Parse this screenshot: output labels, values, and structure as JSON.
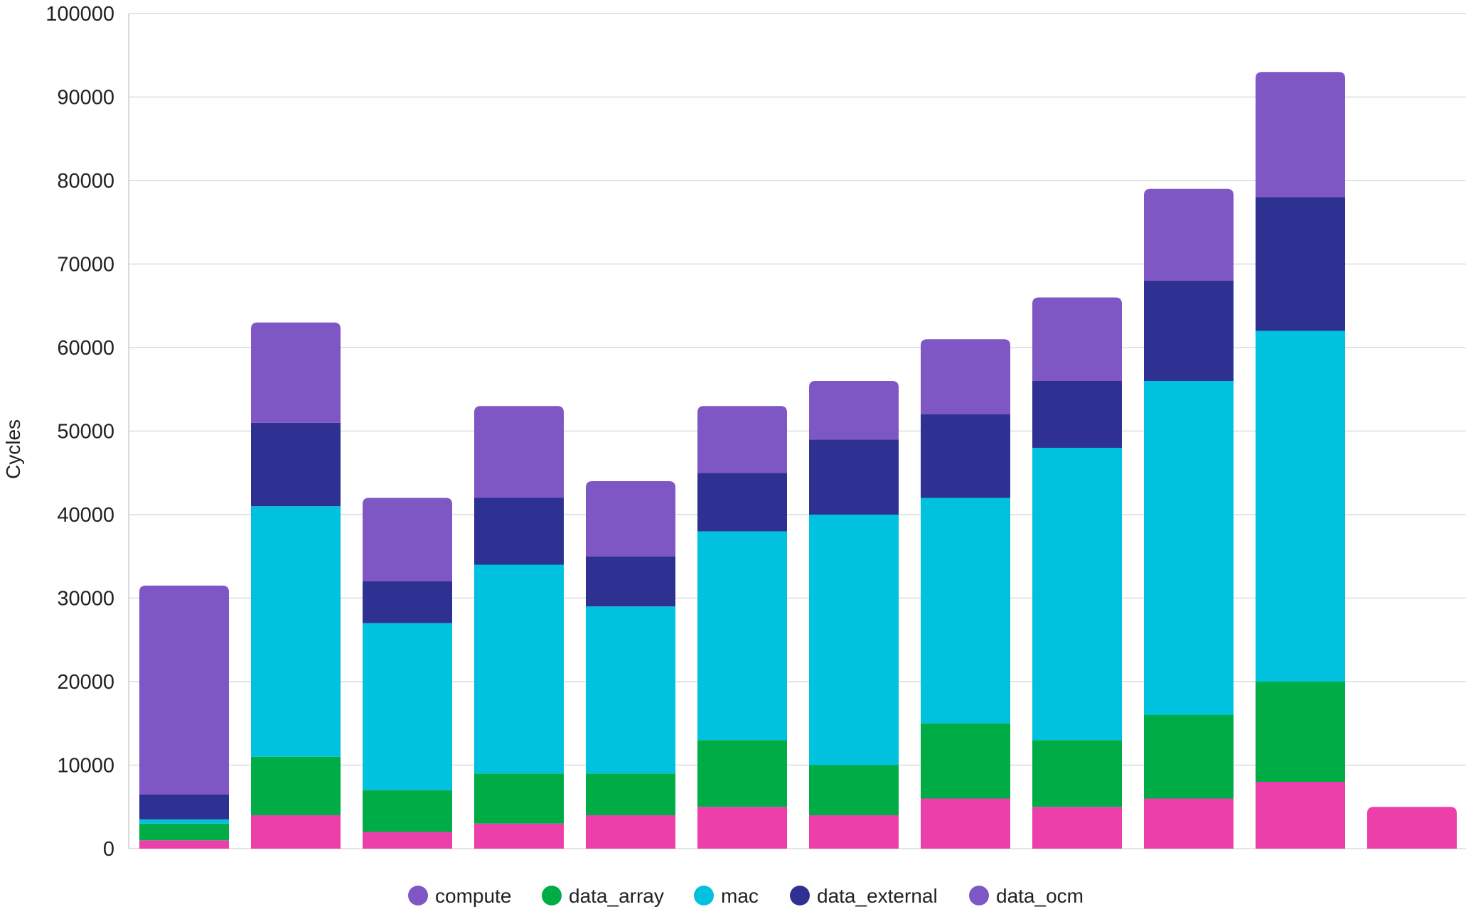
{
  "chart_data": {
    "type": "bar",
    "stacked": true,
    "title": "",
    "xlabel": "",
    "ylabel": "Cycles",
    "ylim": [
      0,
      100000
    ],
    "yticks": [
      0,
      10000,
      20000,
      30000,
      40000,
      50000,
      60000,
      70000,
      80000,
      90000,
      100000
    ],
    "grid": true,
    "legend_position": "bottom",
    "bar_count": 12,
    "series": [
      {
        "name": "",
        "color": "#ED3FAA",
        "values": [
          1000,
          4000,
          2000,
          3000,
          4000,
          5000,
          4000,
          6000,
          5000,
          6000,
          8000,
          5000
        ]
      },
      {
        "name": "data_array",
        "color": "#00AC45",
        "values": [
          2000,
          7000,
          5000,
          6000,
          5000,
          8000,
          6000,
          9000,
          8000,
          10000,
          12000,
          0
        ]
      },
      {
        "name": "mac",
        "color": "#00C1DE",
        "values": [
          500,
          30000,
          20000,
          25000,
          20000,
          25000,
          30000,
          27000,
          35000,
          40000,
          42000,
          0
        ]
      },
      {
        "name": "data_external",
        "color": "#2E3192",
        "values": [
          3000,
          10000,
          5000,
          8000,
          6000,
          7000,
          9000,
          10000,
          8000,
          12000,
          16000,
          0
        ]
      },
      {
        "name": "data_ocm",
        "color": "#7E57C5",
        "values": [
          25000,
          12000,
          10000,
          11000,
          9000,
          8000,
          7000,
          9000,
          10000,
          11000,
          15000,
          0
        ]
      }
    ],
    "legend": [
      {
        "label": "compute",
        "color": "#7E57C5"
      },
      {
        "label": "data_array",
        "color": "#00AC45"
      },
      {
        "label": "mac",
        "color": "#00C1DE"
      },
      {
        "label": "data_external",
        "color": "#2E3192"
      },
      {
        "label": "data_ocm",
        "color": "#7E57C5"
      }
    ]
  }
}
